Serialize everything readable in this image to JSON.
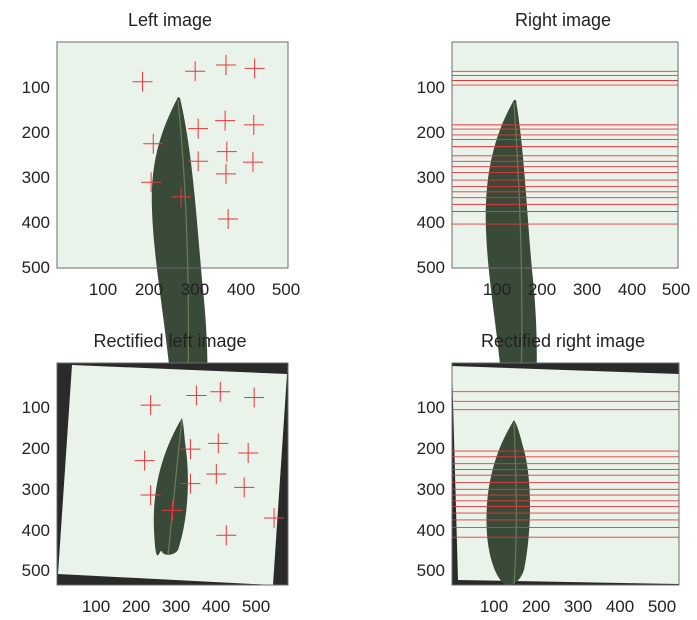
{
  "colors": {
    "background": "#eaf3ea",
    "leaf": "#3a4a38",
    "leaf_stem": "#6d7c55",
    "marker": "#e8363a",
    "border": "#6b6b6b",
    "rectified_fill": "#2a2a2a"
  },
  "panels": [
    {
      "title": "Left image",
      "kind": "crosses",
      "y_ticks": [
        "100",
        "200",
        "300",
        "400",
        "500"
      ],
      "x_ticks": [
        "100",
        "200",
        "300",
        "400",
        "500"
      ],
      "markers": [
        [
          200,
          95
        ],
        [
          323,
          70
        ],
        [
          395,
          55
        ],
        [
          462,
          63
        ],
        [
          225,
          243
        ],
        [
          330,
          207
        ],
        [
          393,
          188
        ],
        [
          460,
          198
        ],
        [
          220,
          335
        ],
        [
          330,
          285
        ],
        [
          397,
          262
        ],
        [
          395,
          315
        ],
        [
          458,
          287
        ],
        [
          290,
          370
        ],
        [
          400,
          423
        ]
      ]
    },
    {
      "title": "Right image",
      "kind": "lines",
      "y_ticks": [
        "100",
        "200",
        "300",
        "400",
        "500"
      ],
      "x_ticks": [
        "100",
        "200",
        "300",
        "400",
        "500"
      ],
      "markers": [
        70,
        80,
        92,
        103,
        198,
        208,
        222,
        233,
        250,
        272,
        285,
        298,
        312,
        330,
        345,
        358,
        372,
        388,
        405,
        435
      ]
    },
    {
      "title": "Rectified left image",
      "kind": "crosses",
      "y_ticks": [
        "100",
        "200",
        "300",
        "400",
        "500"
      ],
      "x_ticks": [
        "100",
        "200",
        "300",
        "400",
        "500"
      ],
      "markers": [
        [
          235,
          110
        ],
        [
          350,
          85
        ],
        [
          410,
          75
        ],
        [
          495,
          90
        ],
        [
          220,
          255
        ],
        [
          335,
          225
        ],
        [
          405,
          210
        ],
        [
          480,
          235
        ],
        [
          235,
          345
        ],
        [
          335,
          315
        ],
        [
          400,
          290
        ],
        [
          470,
          325
        ],
        [
          290,
          385
        ],
        [
          545,
          405
        ],
        [
          425,
          450
        ]
      ]
    },
    {
      "title": "Rectified right image",
      "kind": "lines",
      "y_ticks": [
        "100",
        "200",
        "300",
        "400",
        "500"
      ],
      "x_ticks": [
        "100",
        "200",
        "300",
        "400",
        "500"
      ],
      "markers": [
        75,
        100,
        122,
        230,
        245,
        263,
        278,
        293,
        312,
        330,
        345,
        360,
        375,
        392,
        410,
        430,
        455
      ]
    }
  ]
}
